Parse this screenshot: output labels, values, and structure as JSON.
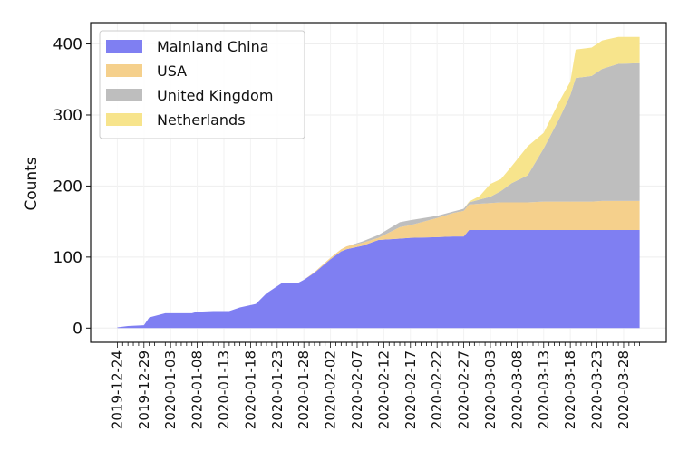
{
  "chart_data": {
    "type": "area",
    "stacked": true,
    "title": "",
    "xlabel": "",
    "ylabel": "Counts",
    "start_date": "2019-12-24",
    "day_offsets": [
      0,
      2,
      5,
      6,
      9,
      14,
      15,
      18,
      21,
      23,
      26,
      28,
      31,
      34,
      35,
      37,
      40,
      42,
      43,
      46,
      49,
      53,
      55,
      60,
      63,
      65,
      66,
      68,
      70,
      72,
      74,
      77,
      80,
      83,
      85,
      86,
      89,
      91,
      94,
      98
    ],
    "series": [
      {
        "name": "Mainland China",
        "color": "#7f7ff2",
        "values": [
          1,
          3,
          4,
          15,
          21,
          21,
          23,
          24,
          24,
          29,
          34,
          49,
          64,
          64,
          68,
          78,
          97,
          108,
          111,
          116,
          124,
          126,
          127,
          128,
          129,
          129,
          138,
          138,
          138,
          138,
          138,
          138,
          138,
          138,
          138,
          138,
          138,
          138,
          138,
          138
        ]
      },
      {
        "name": "USA",
        "color": "#f5d08c",
        "values": [
          0,
          0,
          0,
          0,
          0,
          0,
          0,
          0,
          0,
          0,
          0,
          0,
          0,
          0,
          0,
          1,
          2,
          3,
          4,
          4,
          3,
          16,
          18,
          27,
          33,
          36,
          36,
          37,
          38,
          39,
          39,
          39,
          40,
          40,
          40,
          40,
          40,
          41,
          41,
          41
        ]
      },
      {
        "name": "United Kingdom",
        "color": "#bebebe",
        "values": [
          0,
          0,
          0,
          0,
          0,
          0,
          0,
          0,
          0,
          0,
          0,
          0,
          0,
          0,
          0,
          0,
          0,
          0,
          0,
          2,
          4,
          7,
          7,
          3,
          2,
          3,
          3,
          6,
          9,
          16,
          27,
          38,
          75,
          118,
          150,
          174,
          177,
          186,
          193,
          194
        ]
      },
      {
        "name": "Netherlands",
        "color": "#f7e48c",
        "values": [
          0,
          0,
          0,
          0,
          0,
          0,
          0,
          0,
          0,
          0,
          0,
          0,
          0,
          0,
          0,
          0,
          0,
          0,
          0,
          0,
          0,
          0,
          0,
          0,
          0,
          0,
          1,
          5,
          18,
          17,
          24,
          41,
          22,
          24,
          19,
          40,
          40,
          40,
          38,
          37
        ]
      }
    ],
    "xlim_days": [
      -5,
      103
    ],
    "ylim": [
      -20,
      430
    ],
    "yticks": [
      0,
      100,
      200,
      300,
      400
    ],
    "xtick_labels": [
      "2019-12-24",
      "2019-12-29",
      "2020-01-03",
      "2020-01-08",
      "2020-01-13",
      "2020-01-18",
      "2020-01-23",
      "2020-01-28",
      "2020-02-02",
      "2020-02-07",
      "2020-02-12",
      "2020-02-17",
      "2020-02-22",
      "2020-02-27",
      "2020-03-03",
      "2020-03-08",
      "2020-03-13",
      "2020-03-18",
      "2020-03-23",
      "2020-03-28"
    ],
    "xtick_step_days": 5,
    "minor_tick_days": [
      0,
      98
    ],
    "grid": true,
    "legend_position": "top-left"
  }
}
